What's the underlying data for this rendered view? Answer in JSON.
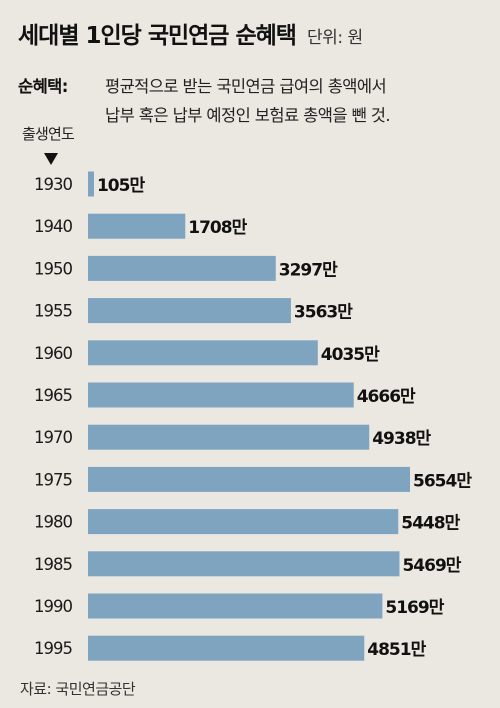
{
  "title": "세대별 1인당 국민연금 순혜택",
  "unit": "단위: 원",
  "definition": {
    "label": "순혜택:",
    "line1": "평균적으로 받는 국민연금 급여의 총액에서",
    "line2": "납부 혹은 납부 예정인 보험료 총액을 뺀 것."
  },
  "year_header": "출생연도",
  "source": "자료: 국민연금공단",
  "colors": {
    "bar": "#7ea4bf",
    "background": "#ebe7e1"
  },
  "chart_data": {
    "type": "bar",
    "orientation": "horizontal",
    "categories": [
      "1930",
      "1940",
      "1950",
      "1955",
      "1960",
      "1965",
      "1970",
      "1975",
      "1980",
      "1985",
      "1990",
      "1995"
    ],
    "values": [
      105,
      1708,
      3297,
      3563,
      4035,
      4666,
      4938,
      5654,
      5448,
      5469,
      5169,
      4851
    ],
    "value_labels": [
      "105만",
      "1708만",
      "3297만",
      "3563만",
      "4035만",
      "4666만",
      "4938만",
      "5654만",
      "5448만",
      "5469만",
      "5169만",
      "4851만"
    ],
    "title": "세대별 1인당 국민연금 순혜택",
    "ylabel": "출생연도",
    "xlabel": "",
    "xlim": [
      0,
      5654
    ],
    "grid": false,
    "legend": "none"
  }
}
